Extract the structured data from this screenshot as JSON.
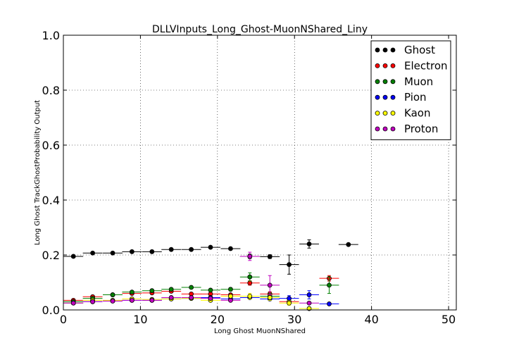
{
  "chart_data": {
    "type": "scatter",
    "title": "DLLVInputs_Long_Ghost-MuonNShared_Liny",
    "xlabel": "Long Ghost MuonNShared",
    "ylabel": "Long Ghost TrackGhostProbability Output",
    "xlim": [
      0,
      51
    ],
    "ylim": [
      0,
      1.0
    ],
    "x_ticks": [
      0,
      10,
      20,
      30,
      40,
      50
    ],
    "x_tick_labels": [
      "0",
      "10",
      "20",
      "30",
      "40",
      "50"
    ],
    "y_ticks": [
      0.0,
      0.2,
      0.4,
      0.6,
      0.8,
      1.0
    ],
    "y_tick_labels": [
      "0.0",
      "0.2",
      "0.4",
      "0.6",
      "0.8",
      "1.0"
    ],
    "grid": true,
    "legend_position": "top-right",
    "bin_half_width": 1.275,
    "series": [
      {
        "name": "Ghost",
        "color": "#000000",
        "points": [
          {
            "x": 1.3,
            "y": 0.195,
            "yerr": 0.003
          },
          {
            "x": 3.8,
            "y": 0.207,
            "yerr": 0.003
          },
          {
            "x": 6.4,
            "y": 0.207,
            "yerr": 0.003
          },
          {
            "x": 8.9,
            "y": 0.212,
            "yerr": 0.003
          },
          {
            "x": 11.5,
            "y": 0.212,
            "yerr": 0.003
          },
          {
            "x": 14.0,
            "y": 0.22,
            "yerr": 0.003
          },
          {
            "x": 16.6,
            "y": 0.22,
            "yerr": 0.003
          },
          {
            "x": 19.1,
            "y": 0.228,
            "yerr": 0.004
          },
          {
            "x": 21.7,
            "y": 0.223,
            "yerr": 0.005
          },
          {
            "x": 24.2,
            "y": 0.195,
            "yerr": 0.008
          },
          {
            "x": 26.8,
            "y": 0.194,
            "yerr": 0.007
          },
          {
            "x": 29.3,
            "y": 0.165,
            "yerr": 0.035
          },
          {
            "x": 31.9,
            "y": 0.24,
            "yerr": 0.015
          },
          {
            "x": 37.0,
            "y": 0.238,
            "yerr": 0.003
          }
        ]
      },
      {
        "name": "Electron",
        "color": "#ff0000",
        "points": [
          {
            "x": 1.3,
            "y": 0.035,
            "yerr": 0.003
          },
          {
            "x": 3.8,
            "y": 0.048,
            "yerr": 0.003
          },
          {
            "x": 6.4,
            "y": 0.055,
            "yerr": 0.003
          },
          {
            "x": 8.9,
            "y": 0.06,
            "yerr": 0.003
          },
          {
            "x": 11.5,
            "y": 0.062,
            "yerr": 0.003
          },
          {
            "x": 14.0,
            "y": 0.068,
            "yerr": 0.003
          },
          {
            "x": 16.6,
            "y": 0.058,
            "yerr": 0.003
          },
          {
            "x": 19.1,
            "y": 0.058,
            "yerr": 0.004
          },
          {
            "x": 21.7,
            "y": 0.055,
            "yerr": 0.004
          },
          {
            "x": 24.2,
            "y": 0.098,
            "yerr": 0.008
          },
          {
            "x": 26.8,
            "y": 0.058,
            "yerr": 0.008
          },
          {
            "x": 29.3,
            "y": 0.03,
            "yerr": 0.01
          },
          {
            "x": 34.5,
            "y": 0.115,
            "yerr": 0.01
          }
        ]
      },
      {
        "name": "Muon",
        "color": "#008000",
        "points": [
          {
            "x": 1.3,
            "y": 0.03,
            "yerr": 0.003
          },
          {
            "x": 3.8,
            "y": 0.042,
            "yerr": 0.003
          },
          {
            "x": 6.4,
            "y": 0.055,
            "yerr": 0.003
          },
          {
            "x": 8.9,
            "y": 0.065,
            "yerr": 0.003
          },
          {
            "x": 11.5,
            "y": 0.07,
            "yerr": 0.003
          },
          {
            "x": 14.0,
            "y": 0.075,
            "yerr": 0.003
          },
          {
            "x": 16.6,
            "y": 0.082,
            "yerr": 0.003
          },
          {
            "x": 19.1,
            "y": 0.072,
            "yerr": 0.004
          },
          {
            "x": 21.7,
            "y": 0.075,
            "yerr": 0.006
          },
          {
            "x": 24.2,
            "y": 0.12,
            "yerr": 0.015
          },
          {
            "x": 26.8,
            "y": 0.05,
            "yerr": 0.01
          },
          {
            "x": 34.5,
            "y": 0.09,
            "yerr": 0.03
          }
        ]
      },
      {
        "name": "Pion",
        "color": "#0000ff",
        "points": [
          {
            "x": 1.3,
            "y": 0.025,
            "yerr": 0.002
          },
          {
            "x": 3.8,
            "y": 0.03,
            "yerr": 0.002
          },
          {
            "x": 6.4,
            "y": 0.033,
            "yerr": 0.002
          },
          {
            "x": 8.9,
            "y": 0.035,
            "yerr": 0.002
          },
          {
            "x": 11.5,
            "y": 0.035,
            "yerr": 0.002
          },
          {
            "x": 14.0,
            "y": 0.04,
            "yerr": 0.002
          },
          {
            "x": 16.6,
            "y": 0.042,
            "yerr": 0.002
          },
          {
            "x": 19.1,
            "y": 0.045,
            "yerr": 0.003
          },
          {
            "x": 21.7,
            "y": 0.04,
            "yerr": 0.004
          },
          {
            "x": 24.2,
            "y": 0.045,
            "yerr": 0.005
          },
          {
            "x": 26.8,
            "y": 0.04,
            "yerr": 0.006
          },
          {
            "x": 29.3,
            "y": 0.042,
            "yerr": 0.01
          },
          {
            "x": 31.9,
            "y": 0.055,
            "yerr": 0.015
          },
          {
            "x": 34.5,
            "y": 0.022,
            "yerr": 0.003
          }
        ]
      },
      {
        "name": "Kaon",
        "color": "#ffff00",
        "points": [
          {
            "x": 1.3,
            "y": 0.025,
            "yerr": 0.003
          },
          {
            "x": 3.8,
            "y": 0.035,
            "yerr": 0.003
          },
          {
            "x": 6.4,
            "y": 0.035,
            "yerr": 0.003
          },
          {
            "x": 8.9,
            "y": 0.04,
            "yerr": 0.003
          },
          {
            "x": 11.5,
            "y": 0.038,
            "yerr": 0.003
          },
          {
            "x": 14.0,
            "y": 0.04,
            "yerr": 0.003
          },
          {
            "x": 16.6,
            "y": 0.042,
            "yerr": 0.003
          },
          {
            "x": 19.1,
            "y": 0.035,
            "yerr": 0.004
          },
          {
            "x": 21.7,
            "y": 0.05,
            "yerr": 0.005
          },
          {
            "x": 24.2,
            "y": 0.05,
            "yerr": 0.01
          },
          {
            "x": 26.8,
            "y": 0.045,
            "yerr": 0.01
          },
          {
            "x": 29.3,
            "y": 0.025,
            "yerr": 0.008
          },
          {
            "x": 31.9,
            "y": 0.005,
            "yerr": 0.004
          }
        ]
      },
      {
        "name": "Proton",
        "color": "#bf00bf",
        "points": [
          {
            "x": 1.3,
            "y": 0.025,
            "yerr": 0.002
          },
          {
            "x": 3.8,
            "y": 0.03,
            "yerr": 0.002
          },
          {
            "x": 6.4,
            "y": 0.032,
            "yerr": 0.002
          },
          {
            "x": 8.9,
            "y": 0.035,
            "yerr": 0.002
          },
          {
            "x": 11.5,
            "y": 0.035,
            "yerr": 0.002
          },
          {
            "x": 14.0,
            "y": 0.045,
            "yerr": 0.003
          },
          {
            "x": 16.6,
            "y": 0.045,
            "yerr": 0.003
          },
          {
            "x": 19.1,
            "y": 0.042,
            "yerr": 0.003
          },
          {
            "x": 21.7,
            "y": 0.035,
            "yerr": 0.004
          },
          {
            "x": 24.2,
            "y": 0.195,
            "yerr": 0.015
          },
          {
            "x": 26.8,
            "y": 0.09,
            "yerr": 0.035
          },
          {
            "x": 31.9,
            "y": 0.025,
            "yerr": 0.004
          }
        ]
      }
    ]
  }
}
